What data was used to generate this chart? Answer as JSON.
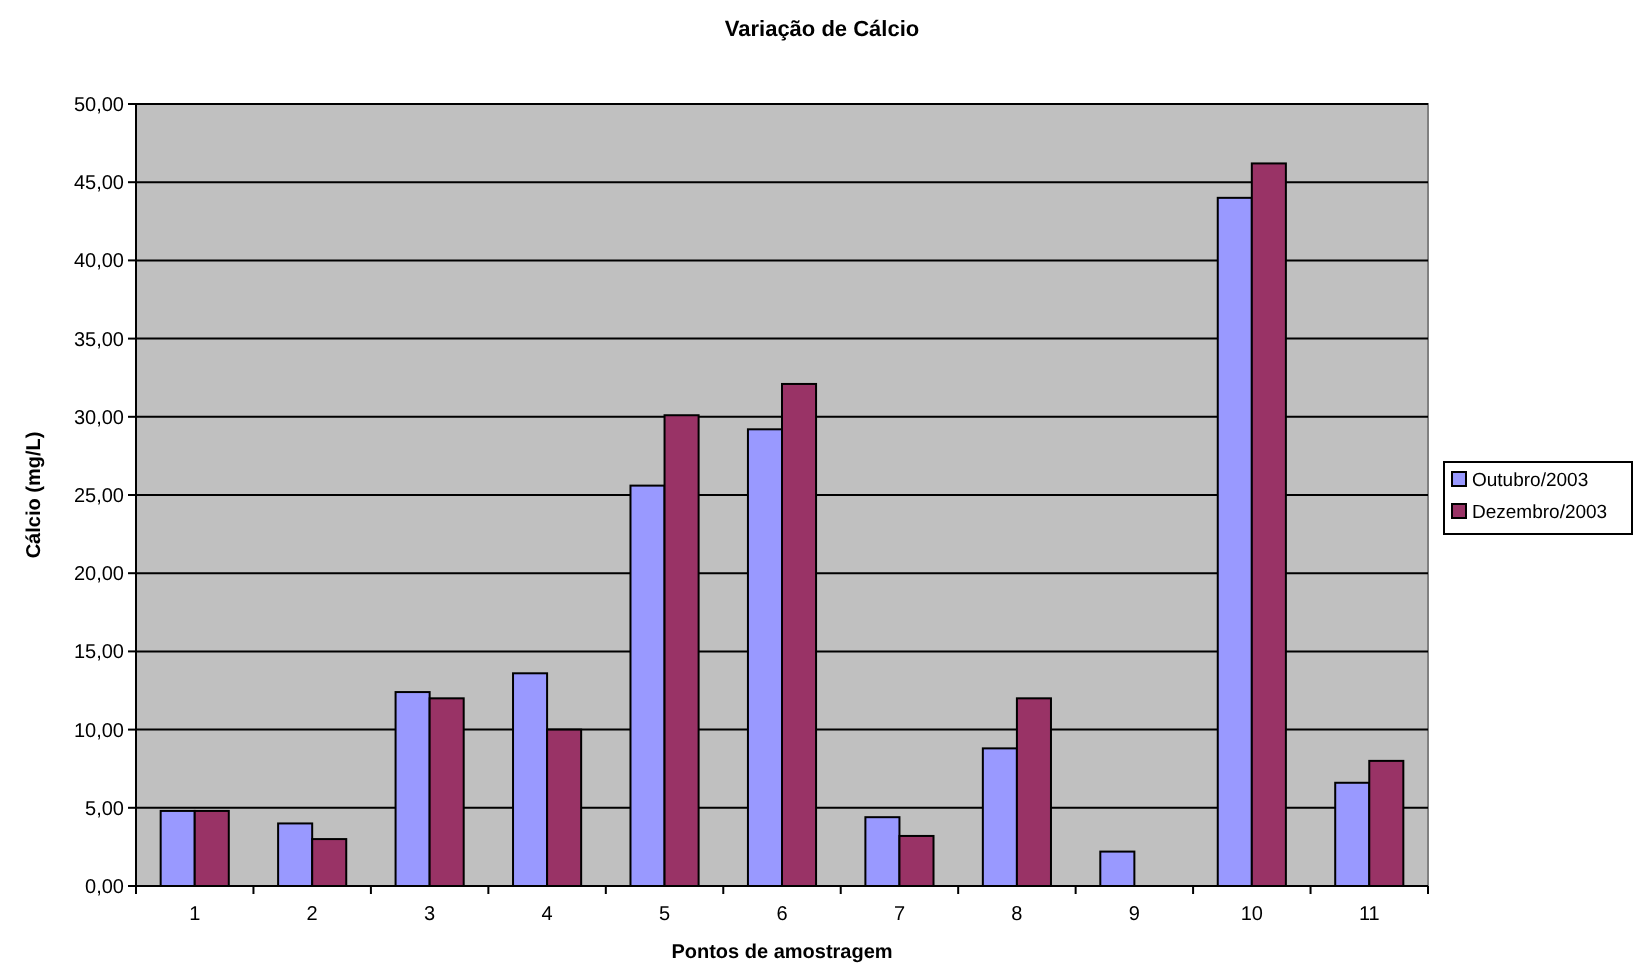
{
  "chart_data": {
    "type": "bar",
    "title": "Variação de Cálcio",
    "xlabel": "Pontos de amostragem",
    "ylabel": "Cálcio (mg/L)",
    "categories": [
      "1",
      "2",
      "3",
      "4",
      "5",
      "6",
      "7",
      "8",
      "9",
      "10",
      "11"
    ],
    "series": [
      {
        "name": "Outubro/2003",
        "color": "#9999ff",
        "values": [
          4.8,
          4.0,
          12.4,
          13.6,
          25.6,
          29.2,
          4.4,
          8.8,
          2.2,
          44.0,
          6.6
        ]
      },
      {
        "name": "Dezembro/2003",
        "color": "#993366",
        "values": [
          4.8,
          3.0,
          12.0,
          10.0,
          30.1,
          32.1,
          3.2,
          12.0,
          null,
          46.2,
          8.0
        ]
      }
    ],
    "ylim": [
      0,
      50
    ],
    "yticks": [
      {
        "value": 0,
        "label": "0,00"
      },
      {
        "value": 5,
        "label": "5,00"
      },
      {
        "value": 10,
        "label": "10,00"
      },
      {
        "value": 15,
        "label": "15,00"
      },
      {
        "value": 20,
        "label": "20,00"
      },
      {
        "value": 25,
        "label": "25,00"
      },
      {
        "value": 30,
        "label": "30,00"
      },
      {
        "value": 35,
        "label": "35,00"
      },
      {
        "value": 40,
        "label": "40,00"
      },
      {
        "value": 45,
        "label": "45,00"
      },
      {
        "value": 50,
        "label": "50,00"
      }
    ],
    "grid": "y",
    "legend": "right"
  }
}
